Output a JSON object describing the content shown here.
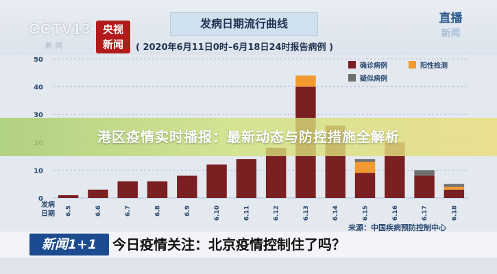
{
  "header": {
    "cctv_logo": "CCTV13",
    "cctv_sub": "新 闻",
    "yangshi_line1": "央视",
    "yangshi_line2": "新闻",
    "title": "发病日期流行曲线",
    "subtitle": "( 2020年6月11日0时–6月18日24时报告病例 )",
    "live_line1": "直播",
    "live_line2": "新闻"
  },
  "overlay_title": "港区疫情实时播报：最新动态与防控措施全解析",
  "source": "来源：中国疾病预防控制中心",
  "ticker": {
    "logo": "新闻1+1",
    "text": "今日疫情关注：北京疫情控制住了吗？"
  },
  "colors": {
    "confirmed": "#7a1f22",
    "positive": "#f29a2e",
    "suspected": "#6f6f6f",
    "grid": "#aec3dc"
  },
  "chart_data": {
    "type": "bar",
    "stacked": true,
    "x_label_line1": "发病",
    "x_label_line2": "日期",
    "categories": [
      "6.5",
      "6.6",
      "6.7",
      "6.8",
      "6.9",
      "6.10",
      "6.11",
      "6.12",
      "6.13",
      "6.14",
      "6.15",
      "6.16",
      "6.17",
      "6.18"
    ],
    "series": [
      {
        "name": "确诊病例",
        "values": [
          1,
          3,
          6,
          6,
          8,
          12,
          14,
          18,
          40,
          26,
          9,
          20,
          8,
          3
        ]
      },
      {
        "name": "阳性检测",
        "values": [
          0,
          0,
          0,
          0,
          0,
          0,
          0,
          0,
          4,
          0,
          4,
          0,
          0,
          1
        ]
      },
      {
        "name": "疑似病例",
        "values": [
          0,
          0,
          0,
          0,
          0,
          0,
          0,
          0,
          0,
          0,
          1,
          0,
          2,
          1
        ]
      }
    ],
    "ylim": [
      0,
      50
    ],
    "yticks": [
      0,
      10,
      20,
      30,
      40,
      50
    ],
    "grid": true,
    "legend_position": "top-right"
  }
}
